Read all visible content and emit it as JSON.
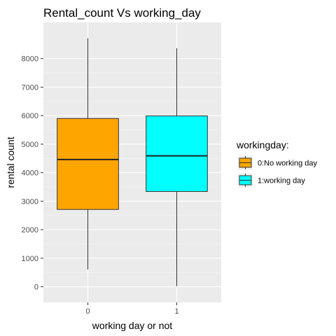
{
  "chart_data": {
    "type": "boxplot",
    "title": "Rental_count Vs working_day",
    "xlabel": "working day or not",
    "ylabel": "rental count",
    "categories": [
      "0",
      "1"
    ],
    "ylim": [
      -550,
      9270
    ],
    "yticks": [
      0,
      1000,
      2000,
      3000,
      4000,
      5000,
      6000,
      7000,
      8000
    ],
    "grid": true,
    "legend": {
      "title": "workingday:",
      "position": "right",
      "entries": [
        {
          "label": "0:No working day",
          "color": "#FFA500"
        },
        {
          "label": "1:working day",
          "color": "#00FFFF"
        }
      ]
    },
    "boxes": [
      {
        "category": "0",
        "min": 605,
        "q1": 2710,
        "median": 4460,
        "q3": 5900,
        "max": 8714,
        "color": "#FFA500"
      },
      {
        "category": "1",
        "min": 22,
        "q1": 3340,
        "median": 4590,
        "q3": 5990,
        "max": 8362,
        "color": "#00FFFF"
      }
    ]
  }
}
